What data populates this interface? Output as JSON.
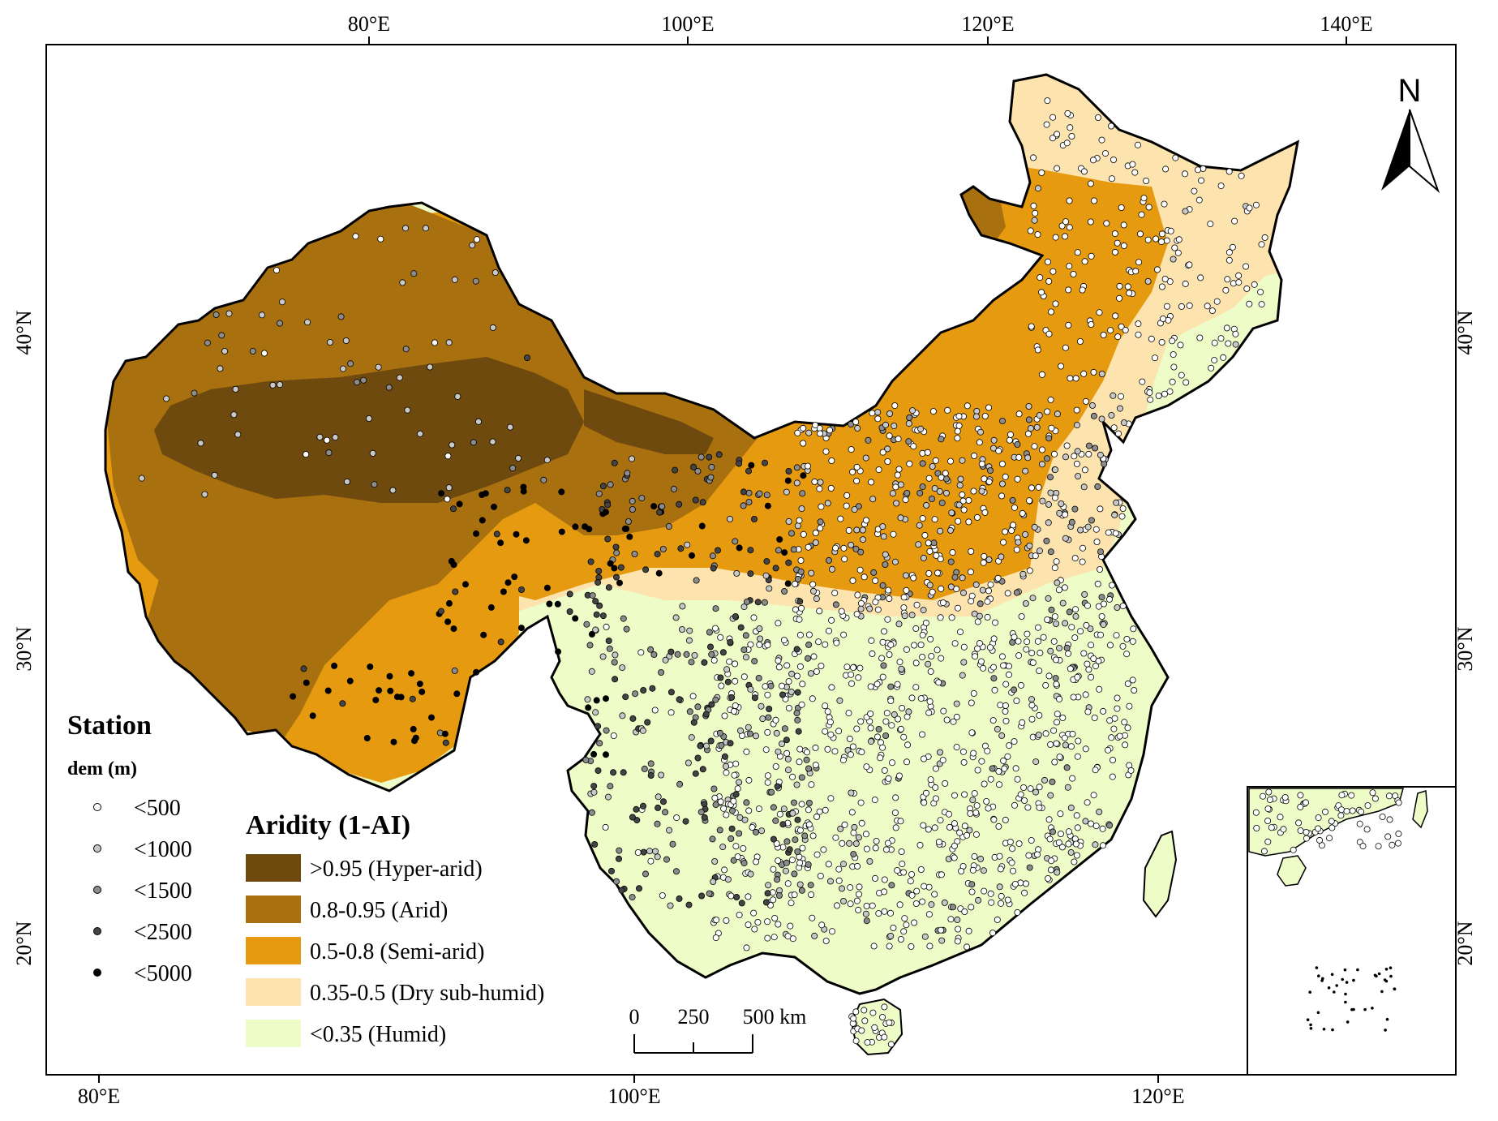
{
  "colors": {
    "hyper_arid": "#6e4a0e",
    "arid": "#a8700f",
    "semi_arid": "#e69a10",
    "dry_subhumid": "#fde3ad",
    "humid": "#eefcc8",
    "border": "#000000"
  },
  "axes": {
    "top_labels": [
      "80°E",
      "100°E",
      "120°E",
      "140°E"
    ],
    "bottom_labels": [
      "80°E",
      "100°E",
      "120°E"
    ],
    "left_labels": [
      "40°N",
      "30°N",
      "20°N"
    ],
    "right_labels": [
      "40°N",
      "30°N",
      "20°N"
    ]
  },
  "north_arrow": {
    "label": "N",
    "icon": "north-arrow-icon"
  },
  "station_legend": {
    "title": "Station",
    "subtitle": "dem (m)",
    "items": [
      {
        "label": "<500",
        "fill": "#ffffff"
      },
      {
        "label": "<1000",
        "fill": "#c8c8c8"
      },
      {
        "label": "<1500",
        "fill": "#8c8c8c"
      },
      {
        "label": "<2500",
        "fill": "#444444"
      },
      {
        "label": "<5000",
        "fill": "#000000"
      }
    ]
  },
  "aridity_legend": {
    "title": "Aridity (1-AI)",
    "items": [
      {
        "label": ">0.95 (Hyper-arid)",
        "color": "#6e4a0e"
      },
      {
        "label": "0.8-0.95 (Arid)",
        "color": "#a8700f"
      },
      {
        "label": "0.5-0.8 (Semi-arid)",
        "color": "#e69a10"
      },
      {
        "label": "0.35-0.5 (Dry sub-humid)",
        "color": "#fde3ad"
      },
      {
        "label": "<0.35 (Humid)",
        "color": "#eefcc8"
      }
    ]
  },
  "scale_bar": {
    "labels": [
      "0",
      "250",
      "500 km"
    ]
  }
}
